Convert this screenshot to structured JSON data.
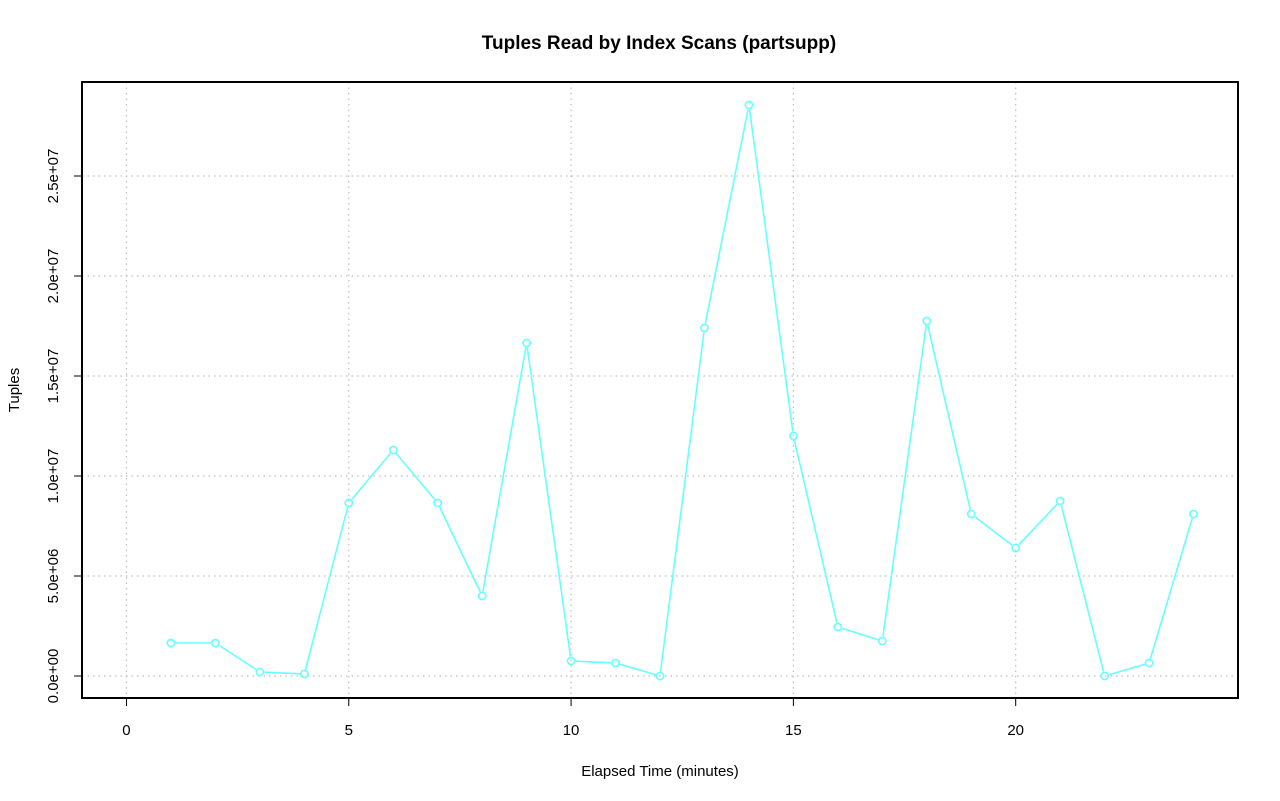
{
  "chart_data": {
    "type": "line",
    "title": "Tuples Read by Index Scans (partsupp)",
    "xlabel": "Elapsed Time (minutes)",
    "ylabel": "Tuples",
    "xlim": [
      -1,
      25
    ],
    "ylim": [
      -1100000,
      29700000
    ],
    "xticks": [
      0,
      5,
      10,
      15,
      20
    ],
    "xtick_labels": [
      "0",
      "5",
      "10",
      "15",
      "20"
    ],
    "yticks": [
      0,
      5000000,
      10000000,
      15000000,
      20000000,
      25000000
    ],
    "ytick_labels": [
      "0.0e+00",
      "5.0e+06",
      "1.0e+07",
      "1.5e+07",
      "2.0e+07",
      "2.5e+07"
    ],
    "grid": true,
    "legend": "none",
    "series_color": "#66ffff",
    "series": [
      {
        "x": [
          1,
          2,
          3,
          4,
          5,
          6,
          7,
          8,
          9,
          10,
          11,
          12,
          13,
          14,
          15,
          16,
          17,
          18,
          19,
          20,
          21,
          22,
          23,
          24
        ],
        "values": [
          1650000,
          1650000,
          200000,
          100000,
          8650000,
          11300000,
          8650000,
          4000000,
          16650000,
          750000,
          650000,
          0,
          17400000,
          28550000,
          12000000,
          2450000,
          1750000,
          17750000,
          8100000,
          6400000,
          8750000,
          0,
          650000,
          8100000
        ]
      }
    ]
  }
}
